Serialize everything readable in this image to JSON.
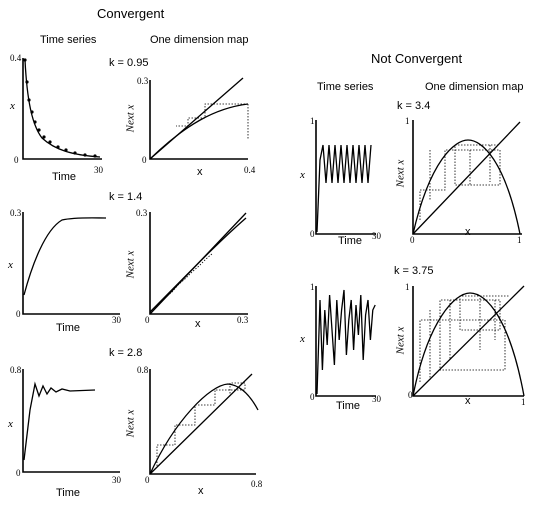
{
  "headings": {
    "convergent": "Convergent",
    "not_convergent": "Not Convergent"
  },
  "labels": {
    "time_series": "Time series",
    "one_dim_map": "One dimension map",
    "x": "x",
    "time": "Time",
    "next_x": "Next x"
  },
  "panels": [
    {
      "k": "k = 0.95",
      "ts_top": "0.4",
      "ts_zero": "0",
      "ts_end": "30",
      "map_top": "0.3",
      "map_zero": "0",
      "map_end": "0.4"
    },
    {
      "k": "k = 1.4",
      "ts_top": "0.3",
      "ts_zero": "0",
      "ts_end": "30",
      "map_top": "0.3",
      "map_zero": "0",
      "map_end": "0.3"
    },
    {
      "k": "k = 2.8",
      "ts_top": "0.8",
      "ts_zero": "0",
      "ts_end": "30",
      "map_top": "0.8",
      "map_zero": "0",
      "map_end": "0.8"
    },
    {
      "k": "k = 3.4",
      "ts_top": "1",
      "ts_zero": "0",
      "ts_end": "30",
      "map_top": "1",
      "map_zero": "0",
      "map_end": "1"
    },
    {
      "k": "k = 3.75",
      "ts_top": "1",
      "ts_zero": "0",
      "ts_end": "30",
      "map_top": "1",
      "map_zero": "0",
      "map_end": "1"
    }
  ]
}
